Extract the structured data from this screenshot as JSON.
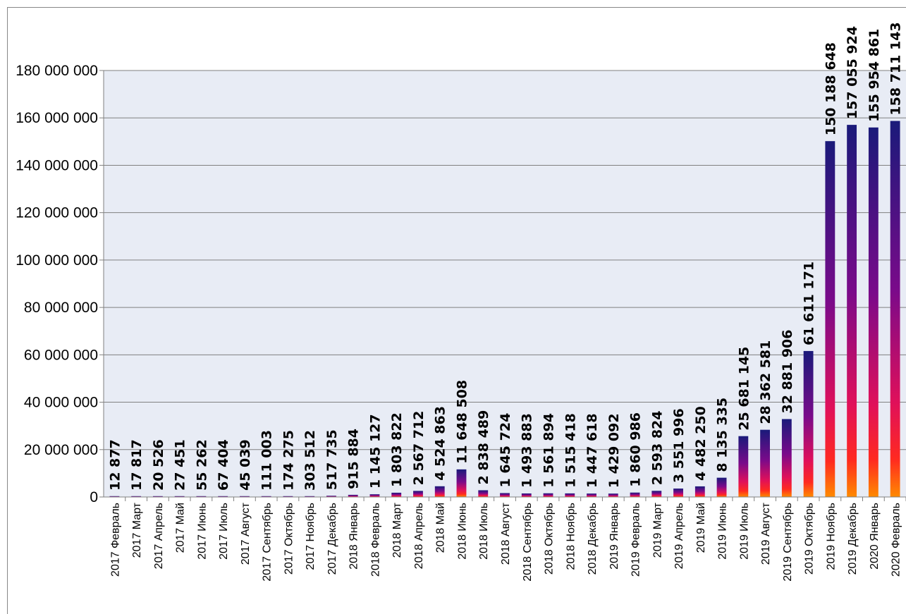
{
  "chart_data": {
    "type": "bar",
    "title": "",
    "xlabel": "",
    "ylabel": "",
    "ylim": [
      0,
      180000000
    ],
    "yticks": [
      0,
      20000000,
      40000000,
      60000000,
      80000000,
      100000000,
      120000000,
      140000000,
      160000000,
      180000000
    ],
    "ytick_labels": [
      "0",
      "20 000 000",
      "40 000 000",
      "60 000 000",
      "80 000 000",
      "100 000 000",
      "120 000 000",
      "140 000 000",
      "160 000 000",
      "180 000 000"
    ],
    "grid": true,
    "legend": "none",
    "colors": {
      "bar_top": "#1a1a7a",
      "bar_mid": "#b0106a",
      "bar_low": "#ff1a2a",
      "bar_bottom": "#ff8a00",
      "plot_bg": "#e8ecf5",
      "grid": "#808080"
    },
    "categories": [
      "2017 Февраль",
      "2017 Март",
      "2017 Апрель",
      "2017 Май",
      "2017 Июнь",
      "2017 Июль",
      "2017 Август",
      "2017 Сентябрь",
      "2017 Октябрь",
      "2017 Ноябрь",
      "2017 Декабрь",
      "2018 Январь",
      "2018 Февраль",
      "2018 Март",
      "2018 Апрель",
      "2018 Май",
      "2018 Июнь",
      "2018 Июль",
      "2018 Август",
      "2018 Сентябрь",
      "2018 Октябрь",
      "2018 Ноябрь",
      "2018 Декабрь",
      "2019 Январь",
      "2019 Февраль",
      "2019 Март",
      "2019 Апрель",
      "2019 Май",
      "2019 Июнь",
      "2019 Июль",
      "2019 Август",
      "2019 Сентябрь",
      "2019 Октябрь",
      "2019 Ноябрь",
      "2019 Декабрь",
      "2020 Январь",
      "2020 Февраль"
    ],
    "values": [
      12877,
      17817,
      20526,
      27451,
      55262,
      67404,
      45039,
      111003,
      174275,
      303512,
      517735,
      915884,
      1145127,
      1803822,
      2567712,
      4524863,
      11648508,
      2838489,
      1645724,
      1493883,
      1561894,
      1515418,
      1447618,
      1429092,
      1860986,
      2593824,
      3551996,
      4482250,
      8135335,
      25681145,
      28362581,
      32881906,
      61611171,
      150188648,
      157055924,
      155954861,
      158711143
    ],
    "data_labels": [
      "12 877",
      "17 817",
      "20 526",
      "27 451",
      "55 262",
      "67 404",
      "45 039",
      "111 003",
      "174 275",
      "303 512",
      "517 735",
      "915 884",
      "1 145 127",
      "1 803 822",
      "2 567 712",
      "4 524 863",
      "11 648 508",
      "2 838 489",
      "1 645 724",
      "1 493 883",
      "1 561 894",
      "1 515 418",
      "1 447 618",
      "1 429 092",
      "1 860 986",
      "2 593 824",
      "3 551 996",
      "4 482 250",
      "8 135 335",
      "25 681 145",
      "28 362 581",
      "32 881 906",
      "61 611 171",
      "150 188 648",
      "157 055 924",
      "155 954 861",
      "158 711 143"
    ]
  }
}
